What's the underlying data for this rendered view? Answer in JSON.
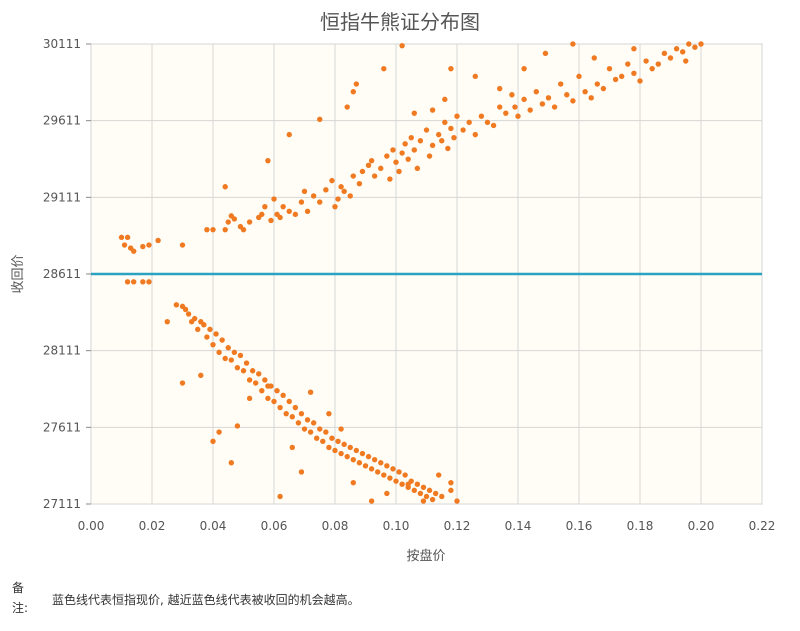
{
  "chart_data": {
    "type": "scatter",
    "title": "恒指牛熊证分布图",
    "xlabel": "按盘价",
    "ylabel": "收回价",
    "xlim": [
      0,
      0.22
    ],
    "ylim": [
      27111,
      30111
    ],
    "x_ticks": [
      "0.00",
      "0.02",
      "0.04",
      "0.06",
      "0.08",
      "0.10",
      "0.12",
      "0.14",
      "0.16",
      "0.18",
      "0.20",
      "0.22"
    ],
    "y_ticks": [
      "27111",
      "27611",
      "28111",
      "28611",
      "29111",
      "29611",
      "30111"
    ],
    "grid": true,
    "reference_line": {
      "y": 28611,
      "color": "#2aa3c2"
    },
    "point_color": "#f07a22",
    "series": [
      {
        "values": [
          [
            0.01,
            28850
          ],
          [
            0.011,
            28800
          ],
          [
            0.012,
            28850
          ],
          [
            0.013,
            28780
          ],
          [
            0.014,
            28760
          ],
          [
            0.017,
            28790
          ],
          [
            0.019,
            28800
          ],
          [
            0.022,
            28830
          ],
          [
            0.03,
            28800
          ],
          [
            0.038,
            28900
          ],
          [
            0.04,
            28900
          ],
          [
            0.044,
            28900
          ],
          [
            0.045,
            28950
          ],
          [
            0.046,
            28990
          ],
          [
            0.047,
            28970
          ],
          [
            0.049,
            28920
          ],
          [
            0.05,
            28900
          ],
          [
            0.052,
            28950
          ],
          [
            0.055,
            28980
          ],
          [
            0.056,
            29000
          ],
          [
            0.057,
            29050
          ],
          [
            0.059,
            28960
          ],
          [
            0.06,
            29100
          ],
          [
            0.061,
            29000
          ],
          [
            0.062,
            28980
          ],
          [
            0.063,
            29050
          ],
          [
            0.065,
            29020
          ],
          [
            0.067,
            29000
          ],
          [
            0.069,
            29080
          ],
          [
            0.07,
            29150
          ],
          [
            0.071,
            29020
          ],
          [
            0.073,
            29120
          ],
          [
            0.075,
            29080
          ],
          [
            0.077,
            29160
          ],
          [
            0.079,
            29220
          ],
          [
            0.08,
            29050
          ],
          [
            0.081,
            29100
          ],
          [
            0.082,
            29180
          ],
          [
            0.083,
            29150
          ],
          [
            0.085,
            29120
          ],
          [
            0.086,
            29250
          ],
          [
            0.088,
            29200
          ],
          [
            0.089,
            29280
          ],
          [
            0.091,
            29320
          ],
          [
            0.092,
            29350
          ],
          [
            0.093,
            29250
          ],
          [
            0.095,
            29300
          ],
          [
            0.097,
            29380
          ],
          [
            0.098,
            29230
          ],
          [
            0.099,
            29420
          ],
          [
            0.1,
            29340
          ],
          [
            0.101,
            29280
          ],
          [
            0.102,
            29400
          ],
          [
            0.103,
            29460
          ],
          [
            0.104,
            29360
          ],
          [
            0.105,
            29500
          ],
          [
            0.106,
            29420
          ],
          [
            0.107,
            29300
          ],
          [
            0.108,
            29480
          ],
          [
            0.11,
            29550
          ],
          [
            0.111,
            29380
          ],
          [
            0.112,
            29450
          ],
          [
            0.114,
            29520
          ],
          [
            0.115,
            29480
          ],
          [
            0.116,
            29600
          ],
          [
            0.117,
            29430
          ],
          [
            0.118,
            29560
          ],
          [
            0.119,
            29500
          ],
          [
            0.12,
            29640
          ],
          [
            0.122,
            29550
          ],
          [
            0.124,
            29600
          ],
          [
            0.126,
            29520
          ],
          [
            0.128,
            29640
          ],
          [
            0.13,
            29600
          ],
          [
            0.132,
            29580
          ],
          [
            0.134,
            29700
          ],
          [
            0.136,
            29660
          ],
          [
            0.138,
            29780
          ],
          [
            0.139,
            29700
          ],
          [
            0.14,
            29640
          ],
          [
            0.142,
            29750
          ],
          [
            0.144,
            29680
          ],
          [
            0.146,
            29800
          ],
          [
            0.148,
            29720
          ],
          [
            0.15,
            29760
          ],
          [
            0.152,
            29700
          ],
          [
            0.154,
            29850
          ],
          [
            0.156,
            29780
          ],
          [
            0.158,
            29740
          ],
          [
            0.16,
            29900
          ],
          [
            0.162,
            29800
          ],
          [
            0.164,
            29760
          ],
          [
            0.166,
            29850
          ],
          [
            0.168,
            29820
          ],
          [
            0.17,
            29950
          ],
          [
            0.172,
            29880
          ],
          [
            0.174,
            29900
          ],
          [
            0.176,
            29980
          ],
          [
            0.178,
            29920
          ],
          [
            0.18,
            29870
          ],
          [
            0.182,
            30000
          ],
          [
            0.184,
            29950
          ],
          [
            0.186,
            29980
          ],
          [
            0.188,
            30050
          ],
          [
            0.19,
            30020
          ],
          [
            0.192,
            30080
          ],
          [
            0.194,
            30060
          ],
          [
            0.196,
            30111
          ],
          [
            0.198,
            30090
          ],
          [
            0.2,
            30111
          ],
          [
            0.044,
            29180
          ],
          [
            0.058,
            29350
          ],
          [
            0.065,
            29520
          ],
          [
            0.075,
            29620
          ],
          [
            0.084,
            29700
          ],
          [
            0.086,
            29800
          ],
          [
            0.087,
            29850
          ],
          [
            0.096,
            29950
          ],
          [
            0.102,
            30100
          ],
          [
            0.106,
            29660
          ],
          [
            0.112,
            29680
          ],
          [
            0.116,
            29750
          ],
          [
            0.118,
            29950
          ],
          [
            0.126,
            29900
          ],
          [
            0.134,
            29820
          ],
          [
            0.142,
            29950
          ],
          [
            0.149,
            30050
          ],
          [
            0.158,
            30111
          ],
          [
            0.165,
            30020
          ],
          [
            0.178,
            30080
          ],
          [
            0.195,
            30000
          ],
          [
            0.012,
            28560
          ],
          [
            0.014,
            28560
          ],
          [
            0.017,
            28560
          ],
          [
            0.019,
            28560
          ],
          [
            0.025,
            28300
          ],
          [
            0.028,
            28410
          ],
          [
            0.03,
            28400
          ],
          [
            0.031,
            28380
          ],
          [
            0.032,
            28350
          ],
          [
            0.033,
            28300
          ],
          [
            0.034,
            28320
          ],
          [
            0.035,
            28250
          ],
          [
            0.036,
            28300
          ],
          [
            0.037,
            28280
          ],
          [
            0.038,
            28200
          ],
          [
            0.039,
            28250
          ],
          [
            0.04,
            28150
          ],
          [
            0.041,
            28220
          ],
          [
            0.042,
            28100
          ],
          [
            0.043,
            28180
          ],
          [
            0.044,
            28060
          ],
          [
            0.045,
            28130
          ],
          [
            0.046,
            28050
          ],
          [
            0.047,
            28100
          ],
          [
            0.048,
            28000
          ],
          [
            0.049,
            28080
          ],
          [
            0.05,
            27980
          ],
          [
            0.051,
            28030
          ],
          [
            0.052,
            27920
          ],
          [
            0.053,
            27980
          ],
          [
            0.054,
            27900
          ],
          [
            0.055,
            27960
          ],
          [
            0.056,
            27850
          ],
          [
            0.057,
            27920
          ],
          [
            0.058,
            27800
          ],
          [
            0.059,
            27880
          ],
          [
            0.06,
            27780
          ],
          [
            0.061,
            27850
          ],
          [
            0.062,
            27740
          ],
          [
            0.063,
            27820
          ],
          [
            0.064,
            27700
          ],
          [
            0.065,
            27780
          ],
          [
            0.066,
            27680
          ],
          [
            0.067,
            27740
          ],
          [
            0.068,
            27640
          ],
          [
            0.069,
            27700
          ],
          [
            0.07,
            27600
          ],
          [
            0.071,
            27660
          ],
          [
            0.072,
            27580
          ],
          [
            0.073,
            27640
          ],
          [
            0.074,
            27540
          ],
          [
            0.075,
            27600
          ],
          [
            0.076,
            27520
          ],
          [
            0.077,
            27580
          ],
          [
            0.078,
            27480
          ],
          [
            0.079,
            27540
          ],
          [
            0.08,
            27460
          ],
          [
            0.081,
            27520
          ],
          [
            0.082,
            27440
          ],
          [
            0.083,
            27500
          ],
          [
            0.084,
            27420
          ],
          [
            0.085,
            27480
          ],
          [
            0.086,
            27400
          ],
          [
            0.087,
            27460
          ],
          [
            0.088,
            27380
          ],
          [
            0.089,
            27440
          ],
          [
            0.09,
            27360
          ],
          [
            0.091,
            27420
          ],
          [
            0.092,
            27340
          ],
          [
            0.093,
            27400
          ],
          [
            0.094,
            27320
          ],
          [
            0.095,
            27380
          ],
          [
            0.096,
            27300
          ],
          [
            0.097,
            27360
          ],
          [
            0.098,
            27280
          ],
          [
            0.099,
            27340
          ],
          [
            0.1,
            27260
          ],
          [
            0.101,
            27320
          ],
          [
            0.102,
            27240
          ],
          [
            0.103,
            27300
          ],
          [
            0.104,
            27220
          ],
          [
            0.105,
            27260
          ],
          [
            0.106,
            27200
          ],
          [
            0.107,
            27240
          ],
          [
            0.108,
            27180
          ],
          [
            0.109,
            27220
          ],
          [
            0.11,
            27160
          ],
          [
            0.111,
            27200
          ],
          [
            0.112,
            27140
          ],
          [
            0.113,
            27180
          ],
          [
            0.115,
            27160
          ],
          [
            0.118,
            27200
          ],
          [
            0.12,
            27130
          ],
          [
            0.03,
            27900
          ],
          [
            0.036,
            27950
          ],
          [
            0.04,
            27520
          ],
          [
            0.042,
            27580
          ],
          [
            0.046,
            27380
          ],
          [
            0.048,
            27620
          ],
          [
            0.052,
            27800
          ],
          [
            0.058,
            27880
          ],
          [
            0.062,
            27160
          ],
          [
            0.066,
            27480
          ],
          [
            0.069,
            27320
          ],
          [
            0.072,
            27840
          ],
          [
            0.078,
            27700
          ],
          [
            0.082,
            27600
          ],
          [
            0.086,
            27250
          ],
          [
            0.092,
            27130
          ],
          [
            0.097,
            27180
          ],
          [
            0.104,
            27240
          ],
          [
            0.109,
            27130
          ],
          [
            0.114,
            27300
          ],
          [
            0.118,
            27250
          ]
        ]
      }
    ]
  },
  "note": {
    "label": "备注:",
    "text": "蓝色线代表恒指现价, 越近蓝色线代表被收回的机会越高。"
  }
}
